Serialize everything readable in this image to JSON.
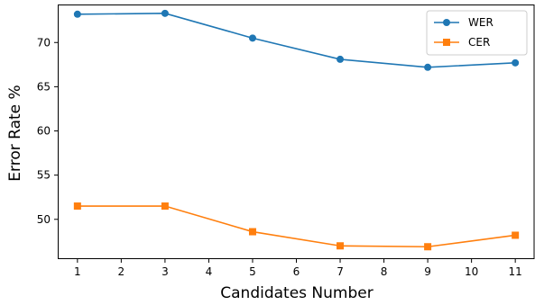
{
  "chart_data": {
    "type": "line",
    "title": "",
    "xlabel": "Candidates Number",
    "ylabel": "Error Rate %",
    "x": [
      1,
      3,
      5,
      7,
      9,
      11
    ],
    "xlim": [
      0.55,
      11.45
    ],
    "ylim": [
      45.5,
      74.3
    ],
    "xticks": [
      1,
      2,
      3,
      4,
      5,
      6,
      7,
      8,
      9,
      10,
      11
    ],
    "yticks": [
      50,
      55,
      60,
      65,
      70
    ],
    "grid": false,
    "legend_position": "top-right",
    "series": [
      {
        "name": "WER",
        "marker": "circle",
        "color": "#1f77b4",
        "values": [
          73.2,
          73.3,
          70.5,
          68.1,
          67.2,
          67.7
        ]
      },
      {
        "name": "CER",
        "marker": "square",
        "color": "#ff7f0e",
        "values": [
          51.5,
          51.5,
          48.6,
          47.0,
          46.9,
          48.2
        ]
      }
    ]
  }
}
